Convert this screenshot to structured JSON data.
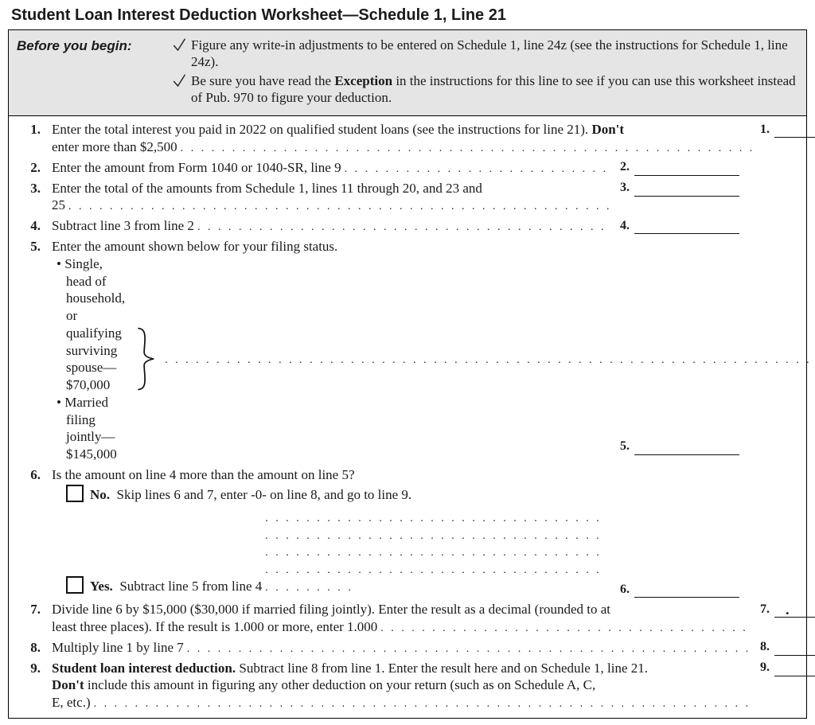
{
  "title_prefix": "Student Loan Interest Deduction Worksheet—Schedule 1, Line 21",
  "before_begin": {
    "label": "Before you begin:",
    "items": [
      "Figure any write-in adjustments to be entered on Schedule 1, line 24z (see the instructions for Schedule 1, line 24z).",
      "Be sure you have read the <b>Exception</b> in the instructions for this line to see if you can use this worksheet instead of Pub. 970 to figure your deduction."
    ]
  },
  "check_color": "#2a2a2a",
  "lines": {
    "l1": {
      "num": "1.",
      "text": "Enter the total interest you paid in 2022 on qualified student loans (see the instructions for line 21). <b>Don't</b> enter more than $2,500",
      "label": "1."
    },
    "l2": {
      "num": "2.",
      "text": "Enter the amount from Form 1040 or 1040-SR, line 9",
      "label": "2."
    },
    "l3": {
      "num": "3.",
      "text_a": "Enter the total of the amounts from Schedule 1, lines 11 through 20, and 23 and",
      "text_b": "25",
      "label": "3."
    },
    "l4": {
      "num": "4.",
      "text": "Subtract line 3 from line 2",
      "label": "4."
    },
    "l5": {
      "num": "5.",
      "intro": "Enter the amount shown below for your filing status.",
      "bullet_a": "Single, head of household, or qualifying surviving spouse—$70,000",
      "bullet_b": "Married filing jointly—$145,000",
      "label": "5."
    },
    "l6": {
      "num": "6.",
      "q": "Is the amount on line 4 more than the amount on line 5?",
      "no_label": "No.",
      "no_text": "Skip lines 6 and 7, enter -0- on line 8, and go to line 9.",
      "yes_label": "Yes.",
      "yes_text": "Subtract line 5 from line 4",
      "label": "6."
    },
    "l7": {
      "num": "7.",
      "text_a": "Divide line 6 by $15,000 ($30,000 if married filing jointly). Enter the result as a decimal (rounded to at",
      "text_b": "least three places). If the result is 1.000 or more, enter 1.000",
      "label": "7.",
      "decimal": "."
    },
    "l8": {
      "num": "8.",
      "text": "Multiply line 1 by line 7",
      "label": "8."
    },
    "l9": {
      "num": "9.",
      "text_a": "<b>Student loan interest deduction.</b> Subtract line 8 from line 1. Enter the result here and on Schedule 1, line 21.",
      "text_b": "<b>Don't</b> include this amount in figuring any other deduction on your return (such as on Schedule A, C,",
      "text_c": "E, etc.)",
      "label": "9."
    }
  }
}
